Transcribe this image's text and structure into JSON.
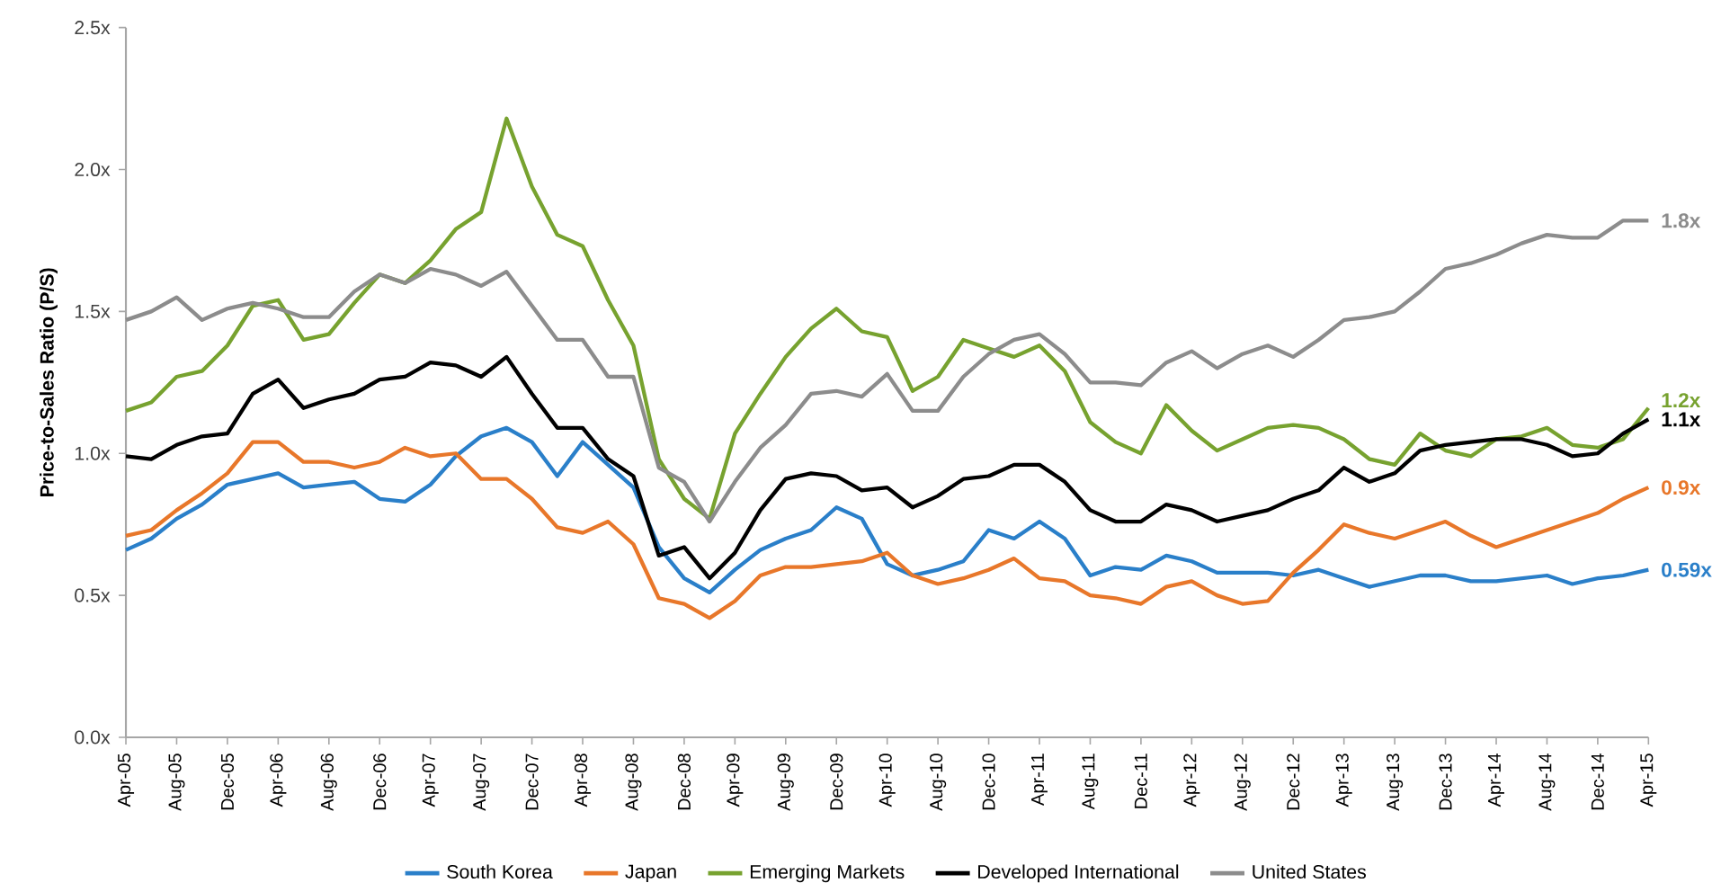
{
  "chart_data": {
    "type": "line",
    "ylabel": "Price-to-Sales Ratio (P/S)",
    "legend": "bottom",
    "x": [
      "2005-04",
      "2005-06",
      "2005-08",
      "2005-10",
      "2005-12",
      "2006-02",
      "2006-04",
      "2006-06",
      "2006-08",
      "2006-10",
      "2006-12",
      "2007-02",
      "2007-04",
      "2007-06",
      "2007-08",
      "2007-10",
      "2007-12",
      "2008-02",
      "2008-04",
      "2008-06",
      "2008-08",
      "2008-10",
      "2008-12",
      "2009-02",
      "2009-04",
      "2009-06",
      "2009-08",
      "2009-10",
      "2009-12",
      "2010-02",
      "2010-04",
      "2010-06",
      "2010-08",
      "2010-10",
      "2010-12",
      "2011-02",
      "2011-04",
      "2011-06",
      "2011-08",
      "2011-10",
      "2011-12",
      "2012-02",
      "2012-04",
      "2012-06",
      "2012-08",
      "2012-10",
      "2012-12",
      "2013-02",
      "2013-04",
      "2013-06",
      "2013-08",
      "2013-10",
      "2013-12",
      "2014-02",
      "2014-04",
      "2014-06",
      "2014-08",
      "2014-10",
      "2014-12",
      "2015-02",
      "2015-04"
    ],
    "xlim": [
      "2005-04",
      "2015-04"
    ],
    "xticks": [
      {
        "value": "2005-04",
        "label": "Apr-05"
      },
      {
        "value": "2005-08",
        "label": "Aug-05"
      },
      {
        "value": "2005-12",
        "label": "Dec-05"
      },
      {
        "value": "2006-04",
        "label": "Apr-06"
      },
      {
        "value": "2006-08",
        "label": "Aug-06"
      },
      {
        "value": "2006-12",
        "label": "Dec-06"
      },
      {
        "value": "2007-04",
        "label": "Apr-07"
      },
      {
        "value": "2007-08",
        "label": "Aug-07"
      },
      {
        "value": "2007-12",
        "label": "Dec-07"
      },
      {
        "value": "2008-04",
        "label": "Apr-08"
      },
      {
        "value": "2008-08",
        "label": "Aug-08"
      },
      {
        "value": "2008-12",
        "label": "Dec-08"
      },
      {
        "value": "2009-04",
        "label": "Apr-09"
      },
      {
        "value": "2009-08",
        "label": "Aug-09"
      },
      {
        "value": "2009-12",
        "label": "Dec-09"
      },
      {
        "value": "2010-04",
        "label": "Apr-10"
      },
      {
        "value": "2010-08",
        "label": "Aug-10"
      },
      {
        "value": "2010-12",
        "label": "Dec-10"
      },
      {
        "value": "2011-04",
        "label": "Apr-11"
      },
      {
        "value": "2011-08",
        "label": "Aug-11"
      },
      {
        "value": "2011-12",
        "label": "Dec-11"
      },
      {
        "value": "2012-04",
        "label": "Apr-12"
      },
      {
        "value": "2012-08",
        "label": "Aug-12"
      },
      {
        "value": "2012-12",
        "label": "Dec-12"
      },
      {
        "value": "2013-04",
        "label": "Apr-13"
      },
      {
        "value": "2013-08",
        "label": "Aug-13"
      },
      {
        "value": "2013-12",
        "label": "Dec-13"
      },
      {
        "value": "2014-04",
        "label": "Apr-14"
      },
      {
        "value": "2014-08",
        "label": "Aug-14"
      },
      {
        "value": "2014-12",
        "label": "Dec-14"
      },
      {
        "value": "2015-04",
        "label": "Apr-15"
      }
    ],
    "ylim": [
      0,
      2.5
    ],
    "yticks": [
      {
        "value": 0,
        "label": "0.0x"
      },
      {
        "value": 0.5,
        "label": "0.5x"
      },
      {
        "value": 1,
        "label": "1.0x"
      },
      {
        "value": 1.5,
        "label": "1.5x"
      },
      {
        "value": 2,
        "label": "2.0x"
      },
      {
        "value": 2.5,
        "label": "2.5x"
      }
    ],
    "series": [
      {
        "name": "South Korea",
        "color": "#2a7fc9",
        "values": [
          0.66,
          0.7,
          0.77,
          0.82,
          0.89,
          0.91,
          0.93,
          0.88,
          0.89,
          0.9,
          0.84,
          0.83,
          0.89,
          0.99,
          1.06,
          1.09,
          1.04,
          0.92,
          1.04,
          0.96,
          0.88,
          0.67,
          0.56,
          0.51,
          0.59,
          0.66,
          0.7,
          0.73,
          0.81,
          0.77,
          0.61,
          0.57,
          0.59,
          0.62,
          0.73,
          0.7,
          0.76,
          0.7,
          0.57,
          0.6,
          0.59,
          0.64,
          0.62,
          0.58,
          0.58,
          0.58,
          0.57,
          0.59,
          0.56,
          0.53,
          0.55,
          0.57,
          0.57,
          0.55,
          0.55,
          0.56,
          0.57,
          0.54,
          0.56,
          0.57,
          0.59
        ],
        "value_labels": [
          null,
          null,
          null,
          null,
          null,
          null,
          null,
          null,
          null,
          null,
          null,
          null,
          null,
          null,
          null,
          null,
          null,
          null,
          null,
          null,
          null,
          null,
          null,
          null,
          null,
          null,
          null,
          null,
          null,
          null,
          null,
          null,
          null,
          null,
          null,
          null,
          null,
          null,
          null,
          null,
          null,
          null,
          null,
          null,
          null,
          null,
          null,
          null,
          null,
          null,
          null,
          null,
          null,
          null,
          null,
          null,
          null,
          null,
          null,
          null,
          "0.59x"
        ]
      },
      {
        "name": "Japan",
        "color": "#e8772a",
        "values": [
          0.71,
          0.73,
          0.8,
          0.86,
          0.93,
          1.04,
          1.04,
          0.97,
          0.97,
          0.95,
          0.97,
          1.02,
          0.99,
          1.0,
          0.91,
          0.91,
          0.84,
          0.74,
          0.72,
          0.76,
          0.68,
          0.49,
          0.47,
          0.42,
          0.48,
          0.57,
          0.6,
          0.6,
          0.61,
          0.62,
          0.65,
          0.57,
          0.54,
          0.56,
          0.59,
          0.63,
          0.56,
          0.55,
          0.5,
          0.49,
          0.47,
          0.53,
          0.55,
          0.5,
          0.47,
          0.48,
          0.58,
          0.66,
          0.75,
          0.72,
          0.7,
          0.73,
          0.76,
          0.71,
          0.67,
          0.7,
          0.73,
          0.76,
          0.79,
          0.84,
          0.88
        ],
        "value_labels": [
          null,
          null,
          null,
          null,
          null,
          null,
          null,
          null,
          null,
          null,
          null,
          null,
          null,
          null,
          null,
          null,
          null,
          null,
          null,
          null,
          null,
          null,
          null,
          null,
          null,
          null,
          null,
          null,
          null,
          null,
          null,
          null,
          null,
          null,
          null,
          null,
          null,
          null,
          null,
          null,
          null,
          null,
          null,
          null,
          null,
          null,
          null,
          null,
          null,
          null,
          null,
          null,
          null,
          null,
          null,
          null,
          null,
          null,
          null,
          null,
          "0.9x"
        ]
      },
      {
        "name": "Emerging Markets",
        "color": "#77a22f",
        "values": [
          1.15,
          1.18,
          1.27,
          1.29,
          1.38,
          1.52,
          1.54,
          1.4,
          1.42,
          1.53,
          1.63,
          1.6,
          1.68,
          1.79,
          1.85,
          2.18,
          1.94,
          1.77,
          1.73,
          1.54,
          1.38,
          0.98,
          0.84,
          0.77,
          1.07,
          1.21,
          1.34,
          1.44,
          1.51,
          1.43,
          1.41,
          1.22,
          1.27,
          1.4,
          1.37,
          1.34,
          1.38,
          1.29,
          1.11,
          1.04,
          1.0,
          1.17,
          1.08,
          1.01,
          1.05,
          1.09,
          1.1,
          1.09,
          1.05,
          0.98,
          0.96,
          1.07,
          1.01,
          0.99,
          1.05,
          1.06,
          1.09,
          1.03,
          1.02,
          1.05,
          1.16
        ],
        "value_labels": [
          null,
          null,
          null,
          null,
          null,
          null,
          null,
          null,
          null,
          null,
          null,
          null,
          null,
          null,
          null,
          null,
          null,
          null,
          null,
          null,
          null,
          null,
          null,
          null,
          null,
          null,
          null,
          null,
          null,
          null,
          null,
          null,
          null,
          null,
          null,
          null,
          null,
          null,
          null,
          null,
          null,
          null,
          null,
          null,
          null,
          null,
          null,
          null,
          null,
          null,
          null,
          null,
          null,
          null,
          null,
          null,
          null,
          null,
          null,
          null,
          "1.2x"
        ]
      },
      {
        "name": "Developed International",
        "color": "#000000",
        "values": [
          0.99,
          0.98,
          1.03,
          1.06,
          1.07,
          1.21,
          1.26,
          1.16,
          1.19,
          1.21,
          1.26,
          1.27,
          1.32,
          1.31,
          1.27,
          1.34,
          1.21,
          1.09,
          1.09,
          0.98,
          0.92,
          0.64,
          0.67,
          0.56,
          0.65,
          0.8,
          0.91,
          0.93,
          0.92,
          0.87,
          0.88,
          0.81,
          0.85,
          0.91,
          0.92,
          0.96,
          0.96,
          0.9,
          0.8,
          0.76,
          0.76,
          0.82,
          0.8,
          0.76,
          0.78,
          0.8,
          0.84,
          0.87,
          0.95,
          0.9,
          0.93,
          1.01,
          1.03,
          1.04,
          1.05,
          1.05,
          1.03,
          0.99,
          1.0,
          1.07,
          1.12
        ],
        "value_labels": [
          null,
          null,
          null,
          null,
          null,
          null,
          null,
          null,
          null,
          null,
          null,
          null,
          null,
          null,
          null,
          null,
          null,
          null,
          null,
          null,
          null,
          null,
          null,
          null,
          null,
          null,
          null,
          null,
          null,
          null,
          null,
          null,
          null,
          null,
          null,
          null,
          null,
          null,
          null,
          null,
          null,
          null,
          null,
          null,
          null,
          null,
          null,
          null,
          null,
          null,
          null,
          null,
          null,
          null,
          null,
          null,
          null,
          null,
          null,
          null,
          "1.1x"
        ]
      },
      {
        "name": "United States",
        "color": "#8c8c8c",
        "values": [
          1.47,
          1.5,
          1.55,
          1.47,
          1.51,
          1.53,
          1.51,
          1.48,
          1.48,
          1.57,
          1.63,
          1.6,
          1.65,
          1.63,
          1.59,
          1.64,
          1.52,
          1.4,
          1.4,
          1.27,
          1.27,
          0.95,
          0.9,
          0.76,
          0.9,
          1.02,
          1.1,
          1.21,
          1.22,
          1.2,
          1.28,
          1.15,
          1.15,
          1.27,
          1.35,
          1.4,
          1.42,
          1.35,
          1.25,
          1.25,
          1.24,
          1.32,
          1.36,
          1.3,
          1.35,
          1.38,
          1.34,
          1.4,
          1.47,
          1.48,
          1.5,
          1.57,
          1.65,
          1.67,
          1.7,
          1.74,
          1.77,
          1.76,
          1.76,
          1.82,
          1.82
        ],
        "value_labels": [
          null,
          null,
          null,
          null,
          null,
          null,
          null,
          null,
          null,
          null,
          null,
          null,
          null,
          null,
          null,
          null,
          null,
          null,
          null,
          null,
          null,
          null,
          null,
          null,
          null,
          null,
          null,
          null,
          null,
          null,
          null,
          null,
          null,
          null,
          null,
          null,
          null,
          null,
          null,
          null,
          null,
          null,
          null,
          null,
          null,
          null,
          null,
          null,
          null,
          null,
          null,
          null,
          null,
          null,
          null,
          null,
          null,
          null,
          null,
          null,
          "1.8x"
        ]
      }
    ]
  }
}
